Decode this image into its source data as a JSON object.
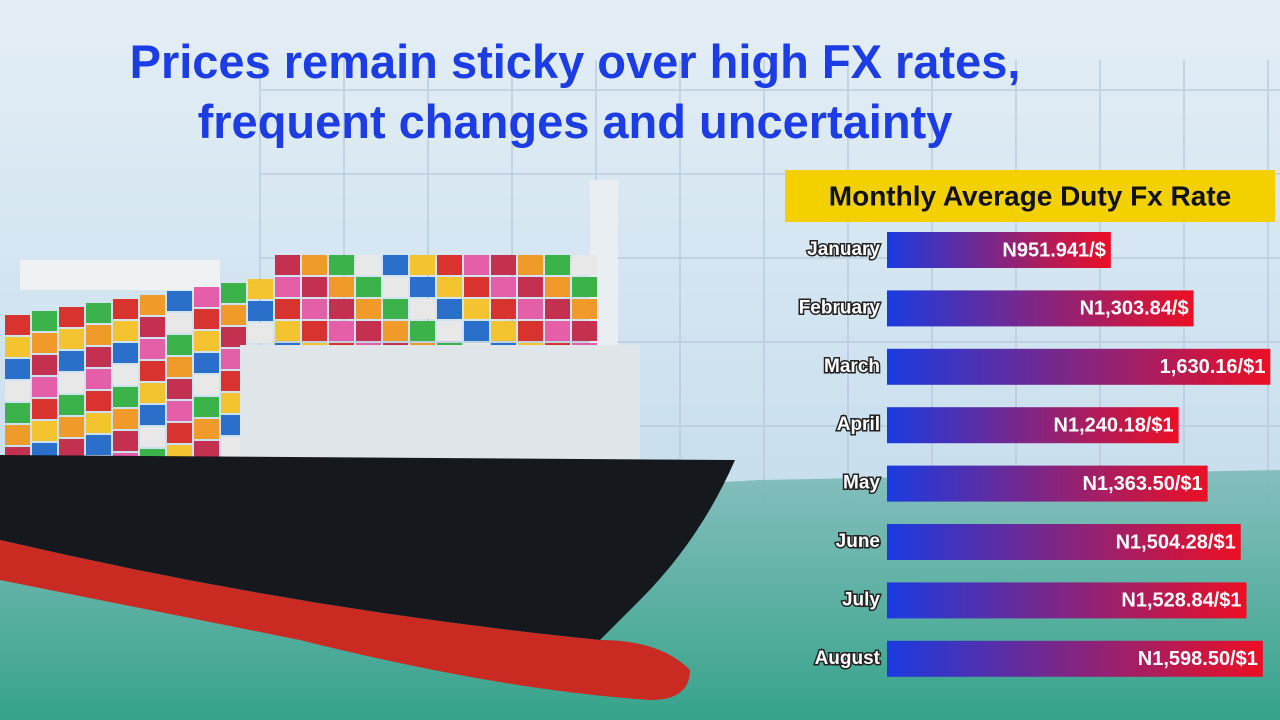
{
  "chart_data": {
    "type": "hbar",
    "title_lines": [
      "Prices remain sticky over high FX rates,",
      "frequent changes and uncertainty"
    ],
    "subtitle": "Monthly Average Duty Fx Rate",
    "categories": [
      "January",
      "February",
      "March",
      "April",
      "May",
      "June",
      "July",
      "August"
    ],
    "values": [
      951.941,
      1303.84,
      1630.16,
      1240.18,
      1363.5,
      1504.28,
      1528.84,
      1598.5
    ],
    "value_labels": [
      "N951.941/$",
      "N1,303.84/$",
      "1,630.16/$1",
      "N1,240.18/$1",
      "N1,363.50/$1",
      "N1,504.28/$1",
      "N1,528.84/$1",
      "N1,598.50/$1"
    ],
    "colors": [
      "#1a3be0",
      "#ec0f24"
    ],
    "xlim": [
      0,
      1650
    ]
  }
}
